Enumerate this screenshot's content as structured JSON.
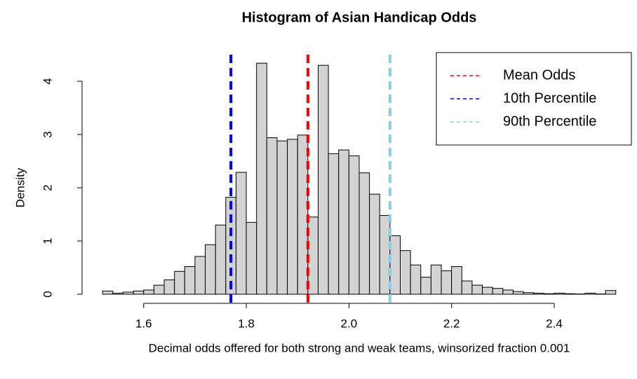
{
  "chart_data": {
    "type": "histogram",
    "title": "Histogram of Asian Handicap Odds",
    "xlabel": "Decimal odds offered for both strong and weak teams, winsorized fraction 0.001",
    "ylabel": "Density",
    "bins": [
      1.52,
      1.54,
      1.56,
      1.58,
      1.6,
      1.62,
      1.64,
      1.66,
      1.68,
      1.7,
      1.72,
      1.74,
      1.76,
      1.78,
      1.8,
      1.82,
      1.84,
      1.86,
      1.88,
      1.9,
      1.92,
      1.94,
      1.96,
      1.98,
      2.0,
      2.02,
      2.04,
      2.06,
      2.08,
      2.1,
      2.12,
      2.14,
      2.16,
      2.18,
      2.2,
      2.22,
      2.24,
      2.26,
      2.28,
      2.3,
      2.32,
      2.34,
      2.36,
      2.38,
      2.4,
      2.42,
      2.44,
      2.46,
      2.48,
      2.5,
      2.52
    ],
    "values": [
      0.06,
      0.02,
      0.04,
      0.06,
      0.08,
      0.17,
      0.27,
      0.43,
      0.52,
      0.71,
      0.93,
      1.3,
      1.82,
      2.29,
      1.35,
      4.34,
      2.94,
      2.88,
      2.91,
      2.99,
      1.45,
      4.3,
      2.64,
      2.71,
      2.6,
      2.28,
      1.88,
      1.48,
      1.1,
      0.82,
      0.55,
      0.32,
      0.55,
      0.44,
      0.52,
      0.25,
      0.17,
      0.13,
      0.11,
      0.08,
      0.05,
      0.03,
      0.02,
      0.01,
      0.02,
      0.01,
      0.005,
      0.02,
      0.005,
      0.07
    ],
    "color": "#d3d3d3",
    "vlines": [
      {
        "name": "Mean Odds",
        "value": 1.92,
        "color": "#ff0000"
      },
      {
        "name": "10th Percentile",
        "value": 1.77,
        "color": "#0000ff"
      },
      {
        "name": "90th Percentile",
        "value": 2.08,
        "color": "#87ceeb"
      }
    ],
    "xlim": [
      1.48,
      2.56
    ],
    "ylim": [
      0,
      4.5
    ],
    "xticks": [
      1.6,
      1.8,
      {
        "value": 2,
        "label": "2.0"
      },
      2.2,
      2.4
    ],
    "yticks": [
      0,
      1,
      2,
      3,
      4
    ],
    "legend": "top-right"
  }
}
